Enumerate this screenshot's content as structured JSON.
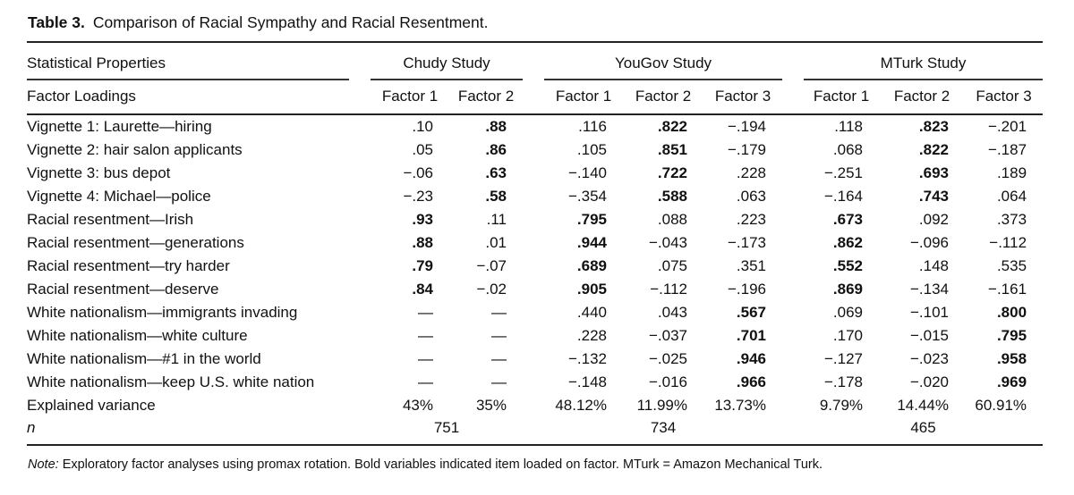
{
  "page": {
    "background": "#ffffff",
    "text_color": "#111111",
    "rule_color": "#222222"
  },
  "title": {
    "label": "Table 3.",
    "text": "Comparison of Racial Sympathy and Racial Resentment."
  },
  "table": {
    "col1_header": "Statistical Properties",
    "col2_header": "Factor Loadings",
    "groups": [
      {
        "label": "Chudy Study",
        "factors": [
          "Factor 1",
          "Factor 2"
        ]
      },
      {
        "label": "YouGov Study",
        "factors": [
          "Factor 1",
          "Factor 2",
          "Factor 3"
        ]
      },
      {
        "label": "MTurk Study",
        "factors": [
          "Factor 1",
          "Factor 2",
          "Factor 3"
        ]
      }
    ],
    "rows": [
      {
        "label": "Vignette 1: Laurette—hiring",
        "values": [
          ".10",
          ".88",
          ".116",
          ".822",
          "−.194",
          ".118",
          ".823",
          "−.201"
        ],
        "bold": [
          0,
          1,
          0,
          1,
          0,
          0,
          1,
          0
        ]
      },
      {
        "label": "Vignette 2: hair salon applicants",
        "values": [
          ".05",
          ".86",
          ".105",
          ".851",
          "−.179",
          ".068",
          ".822",
          "−.187"
        ],
        "bold": [
          0,
          1,
          0,
          1,
          0,
          0,
          1,
          0
        ]
      },
      {
        "label": "Vignette 3: bus depot",
        "values": [
          "−.06",
          ".63",
          "−.140",
          ".722",
          ".228",
          "−.251",
          ".693",
          ".189"
        ],
        "bold": [
          0,
          1,
          0,
          1,
          0,
          0,
          1,
          0
        ]
      },
      {
        "label": "Vignette 4: Michael—police",
        "values": [
          "−.23",
          ".58",
          "−.354",
          ".588",
          ".063",
          "−.164",
          ".743",
          ".064"
        ],
        "bold": [
          0,
          1,
          0,
          1,
          0,
          0,
          1,
          0
        ]
      },
      {
        "label": "Racial resentment—Irish",
        "values": [
          ".93",
          ".11",
          ".795",
          ".088",
          ".223",
          ".673",
          ".092",
          ".373"
        ],
        "bold": [
          1,
          0,
          1,
          0,
          0,
          1,
          0,
          0
        ]
      },
      {
        "label": "Racial resentment—generations",
        "values": [
          ".88",
          ".01",
          ".944",
          "−.043",
          "−.173",
          ".862",
          "−.096",
          "−.112"
        ],
        "bold": [
          1,
          0,
          1,
          0,
          0,
          1,
          0,
          0
        ]
      },
      {
        "label": "Racial resentment—try harder",
        "values": [
          ".79",
          "−.07",
          ".689",
          ".075",
          ".351",
          ".552",
          ".148",
          ".535"
        ],
        "bold": [
          1,
          0,
          1,
          0,
          0,
          1,
          0,
          0
        ]
      },
      {
        "label": "Racial resentment—deserve",
        "values": [
          ".84",
          "−.02",
          ".905",
          "−.112",
          "−.196",
          ".869",
          "−.134",
          "−.161"
        ],
        "bold": [
          1,
          0,
          1,
          0,
          0,
          1,
          0,
          0
        ]
      },
      {
        "label": "White nationalism—immigrants invading",
        "values": [
          "—",
          "—",
          ".440",
          ".043",
          ".567",
          ".069",
          "−.101",
          ".800"
        ],
        "bold": [
          0,
          0,
          0,
          0,
          1,
          0,
          0,
          1
        ]
      },
      {
        "label": "White nationalism—white culture",
        "values": [
          "—",
          "—",
          ".228",
          "−.037",
          ".701",
          ".170",
          "−.015",
          ".795"
        ],
        "bold": [
          0,
          0,
          0,
          0,
          1,
          0,
          0,
          1
        ]
      },
      {
        "label": "White nationalism—#1 in the world",
        "values": [
          "—",
          "—",
          "−.132",
          "−.025",
          ".946",
          "−.127",
          "−.023",
          ".958"
        ],
        "bold": [
          0,
          0,
          0,
          0,
          1,
          0,
          0,
          1
        ]
      },
      {
        "label": "White nationalism—keep U.S. white nation",
        "values": [
          "—",
          "—",
          "−.148",
          "−.016",
          ".966",
          "−.178",
          "−.020",
          ".969"
        ],
        "bold": [
          0,
          0,
          0,
          0,
          1,
          0,
          0,
          1
        ]
      },
      {
        "label": "Explained variance",
        "values": [
          "43%",
          "35%",
          "48.12%",
          "11.99%",
          "13.73%",
          "9.79%",
          "14.44%",
          "60.91%"
        ],
        "bold": [
          0,
          0,
          0,
          0,
          0,
          0,
          0,
          0
        ]
      }
    ],
    "n_row": {
      "label": "n",
      "values": [
        "751",
        "734",
        "465"
      ]
    }
  },
  "note": {
    "prefix": "Note:",
    "text": " Exploratory factor analyses using promax rotation. Bold variables indicated item loaded on factor. MTurk = Amazon Mechanical Turk."
  }
}
